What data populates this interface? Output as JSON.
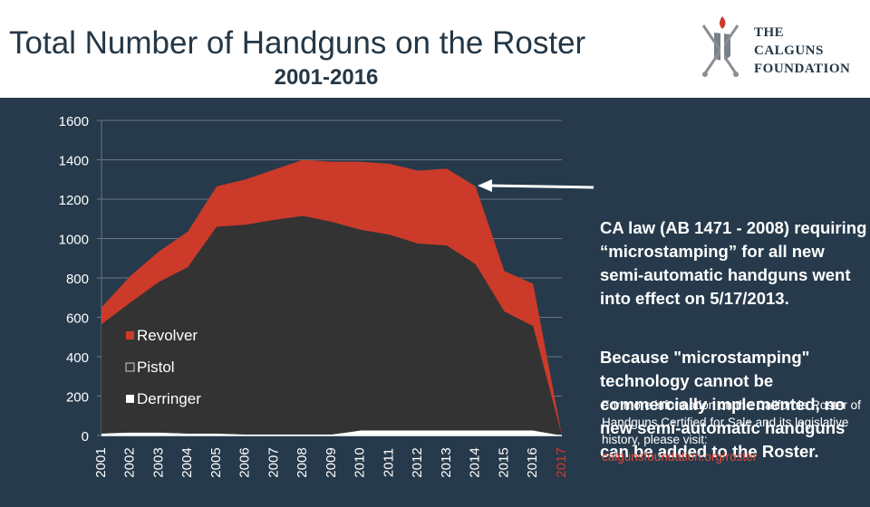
{
  "header": {
    "title": "Total Number of Handguns on the Roster",
    "subtitle": "2001-2016",
    "logo": {
      "line1": "THE",
      "line2": "CALGUNS",
      "line3": "FOUNDATION",
      "icon": "shield-crossed-swords-flame-icon"
    }
  },
  "annotation": {
    "note1": "CA law (AB 1471 - 2008) requiring “microstamping” for all new semi-automatic handguns went into effect on 5/17/2013.",
    "note2": "Because \"microstamping\" technology cannot be commercially implemented, no new semi-automatic handguns can be added to the Roster.",
    "more_info": "For more information on the California Roster of Handguns Certified for Sale and its legislative history, please visit:",
    "more_link": "calgunsfoundation.org/roster"
  },
  "colors": {
    "background": "#263a4b",
    "revolver": "#cc3a2a",
    "pistol": "#333333",
    "derringer": "#ffffff",
    "highlight_tick": "#cc3a2a"
  },
  "chart_data": {
    "type": "area",
    "stacked": true,
    "title": "Total Number of Handguns on the Roster",
    "subtitle": "2001-2016",
    "x": [
      "2001",
      "2002",
      "2003",
      "2004",
      "2005",
      "2006",
      "2007",
      "2008",
      "2009",
      "2010",
      "2011",
      "2012",
      "2013",
      "2014",
      "2015",
      "2016",
      "2017"
    ],
    "highlight_x": "2017",
    "ylim": [
      0,
      1600
    ],
    "yticks": [
      0,
      200,
      400,
      600,
      800,
      1000,
      1200,
      1400,
      1600
    ],
    "grid": true,
    "legend_position": "bottom-left",
    "series": [
      {
        "name": "Derringer",
        "values": [
          10,
          15,
          15,
          10,
          10,
          5,
          5,
          5,
          5,
          25,
          25,
          25,
          25,
          25,
          25,
          25,
          0
        ]
      },
      {
        "name": "Pistol",
        "values": [
          555,
          660,
          765,
          845,
          1050,
          1065,
          1090,
          1110,
          1080,
          1020,
          995,
          950,
          940,
          845,
          605,
          530,
          0
        ]
      },
      {
        "name": "Revolver",
        "values": [
          85,
          135,
          155,
          180,
          205,
          230,
          255,
          285,
          305,
          345,
          360,
          370,
          390,
          395,
          205,
          215,
          0
        ]
      }
    ]
  }
}
